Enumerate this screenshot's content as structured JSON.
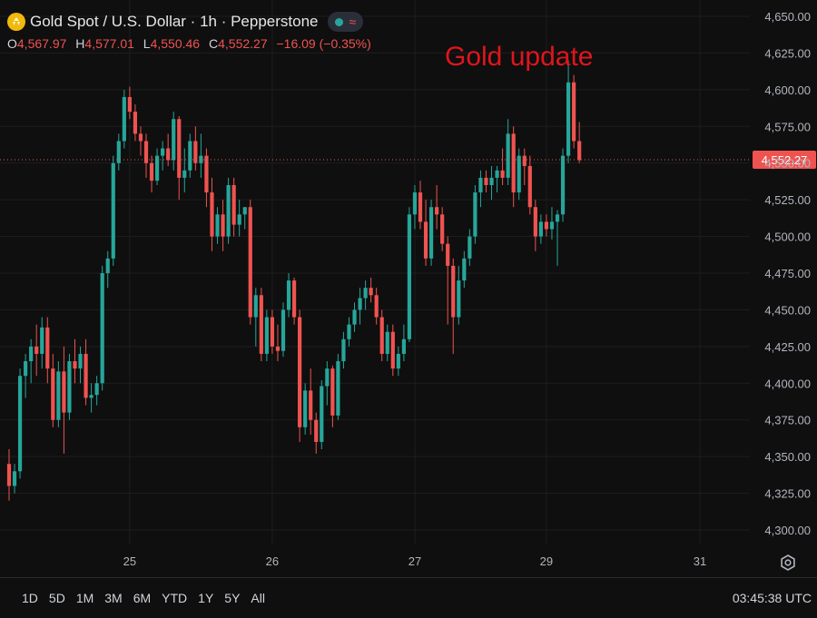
{
  "header": {
    "title": "Gold Spot / U.S. Dollar · 1h · Pepperstone",
    "ohlc": [
      {
        "key": "O",
        "value": "4,567.97"
      },
      {
        "key": "H",
        "value": "4,577.01"
      },
      {
        "key": "L",
        "value": "4,550.46"
      },
      {
        "key": "C",
        "value": "4,552.27"
      }
    ],
    "change": "−16.09 (−0.35%)",
    "icons": [
      "gold-coin-icon",
      "market-open-dot-icon",
      "wave-icon"
    ]
  },
  "annotation": "Gold update",
  "price_label": "4,552.27",
  "colors": {
    "up": "#26a69a",
    "down": "#ef5350",
    "background": "#0f0f0f",
    "grid": "#1e1e1e",
    "last_price": "#ef5350",
    "annotation": "#e0151c"
  },
  "bottom": {
    "ranges": [
      "1D",
      "5D",
      "1M",
      "3M",
      "6M",
      "YTD",
      "1Y",
      "5Y",
      "All"
    ],
    "clock": "03:45:38 UTC",
    "icons": [
      "settings-icon"
    ]
  },
  "chart_data": {
    "type": "candlestick",
    "title": "Gold Spot / U.S. Dollar · 1h · Pepperstone",
    "ylim": [
      4285,
      4655
    ],
    "yticks": [
      4300,
      4325,
      4350,
      4375,
      4400,
      4425,
      4450,
      4475,
      4500,
      4525,
      4550,
      4575,
      4600,
      4625,
      4650
    ],
    "ytick_labels": [
      "4,300.00",
      "4,325.00",
      "4,350.00",
      "4,375.00",
      "4,400.00",
      "4,425.00",
      "4,450.00",
      "4,475.00",
      "4,500.00",
      "4,525.00",
      "4,550.00",
      "4,575.00",
      "4,600.00",
      "4,625.00",
      "4,650.00"
    ],
    "x_labels": [
      {
        "label": "25",
        "index": 22
      },
      {
        "label": "26",
        "index": 48
      },
      {
        "label": "27",
        "index": 74
      },
      {
        "label": "29",
        "index": 98
      },
      {
        "label": "31",
        "index": 126
      }
    ],
    "last_price": 4552.27,
    "grid": true,
    "candles": [
      [
        4345,
        4355,
        4320,
        4330
      ],
      [
        4330,
        4345,
        4325,
        4340
      ],
      [
        4340,
        4410,
        4335,
        4405
      ],
      [
        4405,
        4420,
        4390,
        4415
      ],
      [
        4415,
        4430,
        4400,
        4425
      ],
      [
        4425,
        4440,
        4405,
        4420
      ],
      [
        4420,
        4445,
        4410,
        4438
      ],
      [
        4438,
        4445,
        4400,
        4410
      ],
      [
        4410,
        4420,
        4370,
        4375
      ],
      [
        4375,
        4415,
        4370,
        4408
      ],
      [
        4408,
        4425,
        4352,
        4380
      ],
      [
        4380,
        4420,
        4375,
        4415
      ],
      [
        4415,
        4430,
        4400,
        4410
      ],
      [
        4410,
        4425,
        4400,
        4420
      ],
      [
        4420,
        4430,
        4385,
        4390
      ],
      [
        4390,
        4400,
        4380,
        4392
      ],
      [
        4392,
        4405,
        4385,
        4400
      ],
      [
        4400,
        4480,
        4395,
        4475
      ],
      [
        4475,
        4490,
        4465,
        4485
      ],
      [
        4485,
        4555,
        4480,
        4550
      ],
      [
        4550,
        4570,
        4545,
        4565
      ],
      [
        4565,
        4600,
        4560,
        4595
      ],
      [
        4595,
        4602,
        4580,
        4585
      ],
      [
        4585,
        4590,
        4565,
        4570
      ],
      [
        4570,
        4575,
        4555,
        4565
      ],
      [
        4565,
        4570,
        4540,
        4550
      ],
      [
        4550,
        4555,
        4530,
        4538
      ],
      [
        4538,
        4560,
        4535,
        4555
      ],
      [
        4555,
        4565,
        4545,
        4560
      ],
      [
        4560,
        4570,
        4548,
        4552
      ],
      [
        4552,
        4585,
        4545,
        4580
      ],
      [
        4580,
        4582,
        4525,
        4540
      ],
      [
        4540,
        4560,
        4530,
        4545
      ],
      [
        4545,
        4570,
        4540,
        4565
      ],
      [
        4565,
        4575,
        4545,
        4550
      ],
      [
        4550,
        4570,
        4540,
        4555
      ],
      [
        4555,
        4560,
        4520,
        4530
      ],
      [
        4530,
        4540,
        4490,
        4500
      ],
      [
        4500,
        4520,
        4495,
        4515
      ],
      [
        4515,
        4525,
        4490,
        4500
      ],
      [
        4500,
        4540,
        4495,
        4535
      ],
      [
        4535,
        4540,
        4500,
        4508
      ],
      [
        4508,
        4525,
        4500,
        4515
      ],
      [
        4515,
        4520,
        4505,
        4520
      ],
      [
        4520,
        4525,
        4440,
        4445
      ],
      [
        4445,
        4465,
        4425,
        4460
      ],
      [
        4460,
        4465,
        4415,
        4420
      ],
      [
        4420,
        4450,
        4415,
        4445
      ],
      [
        4445,
        4450,
        4420,
        4425
      ],
      [
        4425,
        4440,
        4415,
        4422
      ],
      [
        4422,
        4455,
        4418,
        4450
      ],
      [
        4450,
        4475,
        4445,
        4470
      ],
      [
        4470,
        4472,
        4440,
        4445
      ],
      [
        4445,
        4450,
        4360,
        4370
      ],
      [
        4370,
        4400,
        4365,
        4395
      ],
      [
        4395,
        4410,
        4365,
        4375
      ],
      [
        4375,
        4380,
        4352,
        4360
      ],
      [
        4360,
        4402,
        4355,
        4398
      ],
      [
        4398,
        4415,
        4385,
        4410
      ],
      [
        4410,
        4412,
        4370,
        4378
      ],
      [
        4378,
        4420,
        4375,
        4415
      ],
      [
        4415,
        4435,
        4410,
        4430
      ],
      [
        4430,
        4445,
        4425,
        4440
      ],
      [
        4440,
        4455,
        4435,
        4450
      ],
      [
        4450,
        4465,
        4440,
        4458
      ],
      [
        4458,
        4470,
        4450,
        4465
      ],
      [
        4465,
        4472,
        4455,
        4460
      ],
      [
        4460,
        4465,
        4440,
        4445
      ],
      [
        4445,
        4450,
        4415,
        4420
      ],
      [
        4420,
        4440,
        4415,
        4435
      ],
      [
        4435,
        4440,
        4405,
        4410
      ],
      [
        4410,
        4425,
        4405,
        4420
      ],
      [
        4420,
        4440,
        4415,
        4430
      ],
      [
        4430,
        4520,
        4428,
        4515
      ],
      [
        4515,
        4535,
        4505,
        4530
      ],
      [
        4530,
        4538,
        4505,
        4510
      ],
      [
        4510,
        4525,
        4480,
        4485
      ],
      [
        4485,
        4525,
        4480,
        4520
      ],
      [
        4520,
        4535,
        4505,
        4515
      ],
      [
        4515,
        4520,
        4490,
        4495
      ],
      [
        4495,
        4500,
        4440,
        4480
      ],
      [
        4480,
        4485,
        4420,
        4445
      ],
      [
        4445,
        4480,
        4440,
        4470
      ],
      [
        4470,
        4490,
        4465,
        4485
      ],
      [
        4485,
        4505,
        4480,
        4500
      ],
      [
        4500,
        4535,
        4495,
        4530
      ],
      [
        4530,
        4545,
        4520,
        4540
      ],
      [
        4540,
        4545,
        4530,
        4535
      ],
      [
        4535,
        4548,
        4525,
        4540
      ],
      [
        4540,
        4548,
        4530,
        4545
      ],
      [
        4545,
        4560,
        4535,
        4540
      ],
      [
        4540,
        4580,
        4535,
        4570
      ],
      [
        4570,
        4575,
        4520,
        4530
      ],
      [
        4530,
        4560,
        4525,
        4555
      ],
      [
        4555,
        4560,
        4535,
        4548
      ],
      [
        4548,
        4555,
        4515,
        4520
      ],
      [
        4520,
        4525,
        4490,
        4500
      ],
      [
        4500,
        4515,
        4495,
        4510
      ],
      [
        4510,
        4515,
        4500,
        4505
      ],
      [
        4505,
        4520,
        4498,
        4510
      ],
      [
        4510,
        4518,
        4480,
        4515
      ],
      [
        4515,
        4560,
        4510,
        4555
      ],
      [
        4555,
        4620,
        4550,
        4605
      ],
      [
        4605,
        4610,
        4560,
        4565
      ],
      [
        4565,
        4578,
        4550,
        4552
      ]
    ]
  }
}
